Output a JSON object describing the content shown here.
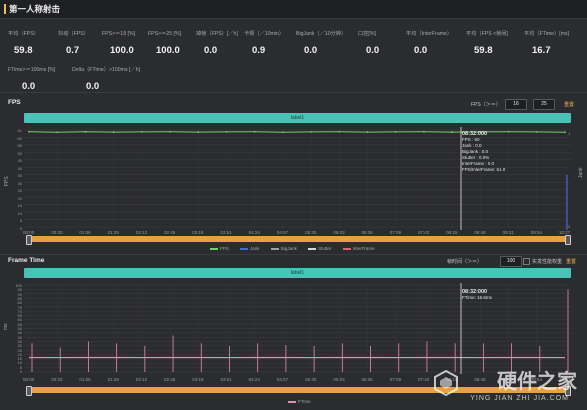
{
  "window": {
    "title": "第一人称射击"
  },
  "stats_row1": [
    {
      "label": "平均（FPS）",
      "value": "59.8"
    },
    {
      "label": "抖动（FPS）",
      "value": "0.7"
    },
    {
      "label": "FPS>＝18 [%]",
      "value": "100.0"
    },
    {
      "label": "FPS>＝25 [%]",
      "value": "100.0"
    },
    {
      "label": "掉帧（FPS）[／h]",
      "value": "0.0"
    },
    {
      "label": "卡顿（／10min）",
      "value": "0.9"
    },
    {
      "label": "BigJank（／10分钟）",
      "value": "0.0"
    },
    {
      "label": "口控[%]",
      "value": "0.0"
    },
    {
      "label": "平均（InterFrame）",
      "value": "0.0"
    },
    {
      "label": "平均（FPS <帧间]",
      "value": "59.8"
    },
    {
      "label": "平均（FTime）[ms]",
      "value": "16.7"
    }
  ],
  "stats_row2": [
    {
      "label": "FTime>＝100ms [%]",
      "value": "0.0"
    },
    {
      "label": "Delta（FTime）>100ms [／h]",
      "value": "0.0"
    }
  ],
  "fps_panel": {
    "title": "FPS",
    "range_label": "FPS（＞＝）",
    "range_min": "16",
    "range_max": "25",
    "reset_label": "重置",
    "series_bar_label": "label1",
    "y_axis_label": "FPS",
    "right_axis_label": "Jank",
    "right_axis_ticks": [
      "1",
      "0"
    ],
    "tooltip": {
      "time": "08:32:000",
      "lines": [
        "FPS : 60",
        "Jank : 0.0",
        "BigJank : 0.0",
        "Stutter : 0.0%",
        "InterFrame : 0.0",
        "FPS/InterFrame: 61.0"
      ]
    },
    "legend": [
      {
        "name": "FPS",
        "color": "#6fd36a"
      },
      {
        "name": "Jank",
        "color": "#3b6fd8"
      },
      {
        "name": "BigJank",
        "color": "#a0a0a0"
      },
      {
        "name": "Stutter",
        "color": "#d8d8d8"
      },
      {
        "name": "InterFrame",
        "color": "#e06070"
      }
    ]
  },
  "frametime_panel": {
    "title": "Frame Time",
    "threshold_label": "帧时间（＞＝）",
    "threshold_value": "100",
    "checkbox_label": "实发性能权重",
    "reset_label": "重置",
    "series_bar_label": "label1",
    "y_axis_label": "ms",
    "tooltip": {
      "time": "08:32:000",
      "lines": [
        "FTime: 16.6ms"
      ]
    },
    "legend": [
      {
        "name": "FTime",
        "color": "#e090a8"
      }
    ]
  },
  "watermark": {
    "main": "硬件之家",
    "sub": "YING JIAN ZHI JIA.COM"
  },
  "chart_data": [
    {
      "type": "line",
      "title": "FPS",
      "ylabel": "FPS",
      "x": [
        "00:00",
        "00:33",
        "01:06",
        "01:39",
        "02:12",
        "02:45",
        "03:18",
        "03:51",
        "04:24",
        "04:57",
        "05:30",
        "06:03",
        "06:36",
        "07:09",
        "07:42",
        "08:15",
        "08:48",
        "09:21",
        "09:54",
        "10:27"
      ],
      "y_ticks": [
        "61",
        "60",
        "55",
        "50",
        "45",
        "40",
        "35",
        "30",
        "25",
        "20",
        "15",
        "10",
        "5",
        "0"
      ],
      "ylim": [
        0,
        61
      ],
      "series": [
        {
          "name": "FPS",
          "values": [
            59.9,
            59.6,
            59.9,
            59.7,
            59.8,
            59.9,
            59.7,
            59.8,
            59.9,
            59.6,
            59.8,
            59.9,
            59.7,
            59.8,
            59.9,
            59.7,
            59.8,
            59.9,
            59.8,
            59.6
          ]
        },
        {
          "name": "Jank",
          "values": [
            0,
            0,
            0,
            0,
            0,
            0,
            0,
            0,
            0,
            0,
            0,
            0,
            0,
            0,
            0,
            0,
            0,
            0,
            0,
            1
          ]
        }
      ],
      "grid": true,
      "legend": "bottom"
    },
    {
      "type": "bar",
      "title": "Frame Time",
      "ylabel": "ms",
      "x": [
        "00:00",
        "00:33",
        "01:06",
        "01:39",
        "02:12",
        "02:45",
        "03:18",
        "03:51",
        "04:24",
        "04:57",
        "05:30",
        "06:03",
        "06:36",
        "07:09",
        "07:42",
        "08:15",
        "08:48",
        "09:21",
        "09:54",
        "10:27"
      ],
      "y_ticks": [
        "100",
        "95",
        "90",
        "85",
        "80",
        "75",
        "70",
        "65",
        "60",
        "55",
        "50",
        "45",
        "40",
        "35",
        "30",
        "25",
        "20",
        "15",
        "10",
        "5",
        "0"
      ],
      "ylim": [
        0,
        100
      ],
      "series": [
        {
          "name": "FTime",
          "values": [
            16.7,
            16.6,
            16.7,
            16.7,
            16.6,
            16.7,
            16.7,
            16.6,
            16.7,
            16.7,
            16.6,
            16.7,
            16.7,
            16.6,
            16.7,
            16.7,
            16.6,
            16.7,
            16.7,
            16.6
          ],
          "spikes_ms": [
            33,
            28,
            35,
            33,
            30,
            42,
            33,
            30,
            33,
            31,
            30,
            33,
            30,
            33,
            35,
            33,
            33,
            33,
            30,
            95
          ]
        }
      ],
      "grid": true,
      "legend": "bottom"
    }
  ]
}
